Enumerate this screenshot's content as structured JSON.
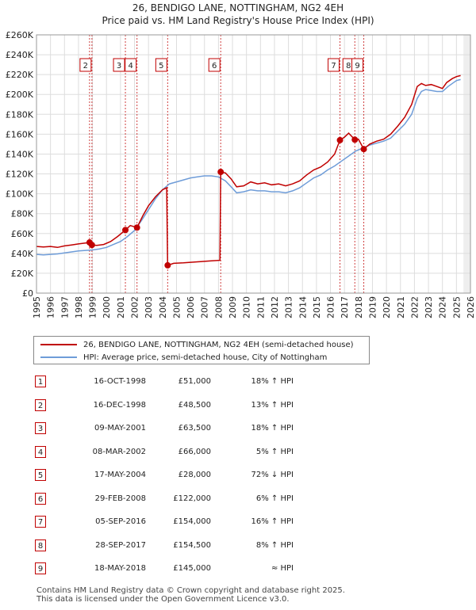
{
  "chart_data": {
    "type": "line",
    "title": "26, BENDIGO LANE, NOTTINGHAM, NG2 4EH",
    "subtitle": "Price paid vs. HM Land Registry's House Price Index (HPI)",
    "xlabel": "",
    "ylabel": "",
    "xlim": [
      1995,
      2026
    ],
    "ylim": [
      0,
      260000
    ],
    "grid": true,
    "x_ticks": [
      "1995",
      "1996",
      "1997",
      "1998",
      "1999",
      "2000",
      "2001",
      "2002",
      "2003",
      "2004",
      "2005",
      "2006",
      "2007",
      "2008",
      "2009",
      "2010",
      "2011",
      "2012",
      "2013",
      "2014",
      "2015",
      "2016",
      "2017",
      "2018",
      "2019",
      "2020",
      "2021",
      "2022",
      "2023",
      "2024",
      "2025",
      "2026"
    ],
    "y_ticks": [
      {
        "value": 0,
        "label": "£0"
      },
      {
        "value": 20000,
        "label": "£20K"
      },
      {
        "value": 40000,
        "label": "£40K"
      },
      {
        "value": 60000,
        "label": "£60K"
      },
      {
        "value": 80000,
        "label": "£80K"
      },
      {
        "value": 100000,
        "label": "£100K"
      },
      {
        "value": 120000,
        "label": "£120K"
      },
      {
        "value": 140000,
        "label": "£140K"
      },
      {
        "value": 160000,
        "label": "£160K"
      },
      {
        "value": 180000,
        "label": "£180K"
      },
      {
        "value": 200000,
        "label": "£200K"
      },
      {
        "value": 220000,
        "label": "£220K"
      },
      {
        "value": 240000,
        "label": "£240K"
      },
      {
        "value": 260000,
        "label": "£260K"
      }
    ],
    "series": [
      {
        "name": "26, BENDIGO LANE, NOTTINGHAM, NG2 4EH (semi-detached house)",
        "color": "#c00000",
        "points": [
          [
            1995.0,
            47000
          ],
          [
            1995.5,
            46500
          ],
          [
            1996.0,
            47000
          ],
          [
            1996.5,
            46000
          ],
          [
            1997.0,
            47500
          ],
          [
            1997.5,
            48500
          ],
          [
            1998.0,
            49500
          ],
          [
            1998.5,
            50500
          ],
          [
            1998.79,
            51000
          ],
          [
            1998.96,
            48500
          ],
          [
            1999.3,
            48000
          ],
          [
            1999.8,
            49000
          ],
          [
            2000.3,
            52000
          ],
          [
            2000.8,
            57000
          ],
          [
            2001.35,
            63500
          ],
          [
            2001.7,
            68000
          ],
          [
            2002.18,
            66000
          ],
          [
            2002.6,
            78000
          ],
          [
            2003.0,
            88000
          ],
          [
            2003.5,
            97000
          ],
          [
            2004.0,
            104000
          ],
          [
            2004.3,
            106000
          ],
          [
            2004.37,
            28000
          ],
          [
            2004.8,
            30000
          ],
          [
            2005.5,
            30500
          ],
          [
            2006.0,
            31000
          ],
          [
            2006.5,
            31500
          ],
          [
            2007.0,
            32000
          ],
          [
            2007.5,
            32500
          ],
          [
            2008.1,
            33000
          ],
          [
            2008.16,
            122000
          ],
          [
            2008.5,
            121000
          ],
          [
            2008.9,
            115000
          ],
          [
            2009.3,
            107000
          ],
          [
            2009.8,
            108000
          ],
          [
            2010.3,
            112000
          ],
          [
            2010.8,
            110000
          ],
          [
            2011.3,
            111000
          ],
          [
            2011.8,
            109000
          ],
          [
            2012.3,
            110000
          ],
          [
            2012.8,
            108000
          ],
          [
            2013.3,
            110000
          ],
          [
            2013.8,
            113000
          ],
          [
            2014.3,
            119000
          ],
          [
            2014.8,
            124000
          ],
          [
            2015.3,
            127000
          ],
          [
            2015.8,
            132000
          ],
          [
            2016.3,
            140000
          ],
          [
            2016.68,
            154000
          ],
          [
            2017.0,
            157000
          ],
          [
            2017.3,
            161000
          ],
          [
            2017.74,
            154500
          ],
          [
            2018.0,
            155000
          ],
          [
            2018.38,
            145000
          ],
          [
            2018.8,
            150000
          ],
          [
            2019.3,
            153000
          ],
          [
            2019.8,
            155000
          ],
          [
            2020.3,
            160000
          ],
          [
            2020.8,
            168000
          ],
          [
            2021.3,
            177000
          ],
          [
            2021.8,
            190000
          ],
          [
            2022.2,
            208000
          ],
          [
            2022.5,
            211000
          ],
          [
            2022.8,
            209000
          ],
          [
            2023.2,
            210000
          ],
          [
            2023.6,
            208000
          ],
          [
            2024.0,
            206000
          ],
          [
            2024.3,
            212000
          ],
          [
            2024.7,
            216000
          ],
          [
            2025.0,
            218000
          ],
          [
            2025.3,
            219000
          ]
        ]
      },
      {
        "name": "HPI: Average price, semi-detached house, City of Nottingham",
        "color": "#6e9cd8",
        "points": [
          [
            1995.0,
            39000
          ],
          [
            1995.5,
            38500
          ],
          [
            1996.0,
            39000
          ],
          [
            1996.5,
            39500
          ],
          [
            1997.0,
            40500
          ],
          [
            1997.5,
            41500
          ],
          [
            1998.0,
            42500
          ],
          [
            1998.5,
            43000
          ],
          [
            1999.0,
            43500
          ],
          [
            1999.5,
            44500
          ],
          [
            2000.0,
            46000
          ],
          [
            2000.5,
            49000
          ],
          [
            2001.0,
            52000
          ],
          [
            2001.5,
            57000
          ],
          [
            2002.0,
            63000
          ],
          [
            2002.5,
            73000
          ],
          [
            2003.0,
            84000
          ],
          [
            2003.5,
            95000
          ],
          [
            2004.0,
            104000
          ],
          [
            2004.5,
            110000
          ],
          [
            2005.0,
            112000
          ],
          [
            2005.5,
            114000
          ],
          [
            2006.0,
            116000
          ],
          [
            2006.5,
            117000
          ],
          [
            2007.0,
            118000
          ],
          [
            2007.5,
            118000
          ],
          [
            2008.0,
            117000
          ],
          [
            2008.5,
            113000
          ],
          [
            2008.9,
            107000
          ],
          [
            2009.3,
            101000
          ],
          [
            2009.8,
            102000
          ],
          [
            2010.3,
            104000
          ],
          [
            2010.8,
            103000
          ],
          [
            2011.3,
            103000
          ],
          [
            2011.8,
            102000
          ],
          [
            2012.3,
            102000
          ],
          [
            2012.8,
            101000
          ],
          [
            2013.3,
            103000
          ],
          [
            2013.8,
            106000
          ],
          [
            2014.3,
            111000
          ],
          [
            2014.8,
            116000
          ],
          [
            2015.3,
            119000
          ],
          [
            2015.8,
            124000
          ],
          [
            2016.3,
            128000
          ],
          [
            2016.8,
            133000
          ],
          [
            2017.3,
            138000
          ],
          [
            2017.8,
            143000
          ],
          [
            2018.3,
            146000
          ],
          [
            2018.8,
            149000
          ],
          [
            2019.3,
            151000
          ],
          [
            2019.8,
            153000
          ],
          [
            2020.3,
            156000
          ],
          [
            2020.8,
            163000
          ],
          [
            2021.3,
            170000
          ],
          [
            2021.8,
            180000
          ],
          [
            2022.2,
            196000
          ],
          [
            2022.5,
            203000
          ],
          [
            2022.8,
            205000
          ],
          [
            2023.2,
            204000
          ],
          [
            2023.6,
            203000
          ],
          [
            2024.0,
            203000
          ],
          [
            2024.4,
            208000
          ],
          [
            2024.8,
            212000
          ],
          [
            2025.0,
            214000
          ],
          [
            2025.3,
            215000
          ]
        ]
      }
    ],
    "sales": [
      {
        "n": "1",
        "x": 1998.79,
        "price": 51000
      },
      {
        "n": "2",
        "x": 1998.96,
        "price": 48500
      },
      {
        "n": "3",
        "x": 2001.35,
        "price": 63500
      },
      {
        "n": "4",
        "x": 2002.18,
        "price": 66000
      },
      {
        "n": "5",
        "x": 2004.37,
        "price": 28000
      },
      {
        "n": "6",
        "x": 2008.16,
        "price": 122000
      },
      {
        "n": "7",
        "x": 2016.68,
        "price": 154000
      },
      {
        "n": "8",
        "x": 2017.74,
        "price": 154500
      },
      {
        "n": "9",
        "x": 2018.38,
        "price": 145000
      }
    ],
    "marker_labels": [
      {
        "n": "2",
        "x": 1998.96
      },
      {
        "n": "3",
        "x": 2001.35
      },
      {
        "n": "4",
        "x": 2002.18
      },
      {
        "n": "5",
        "x": 2004.37
      },
      {
        "n": "6",
        "x": 2008.16
      },
      {
        "n": "7",
        "x": 2016.68
      },
      {
        "n": "8",
        "x": 2017.74
      },
      {
        "n": "9",
        "x": 2018.38
      }
    ],
    "future_shade_from": 2025.5
  },
  "legend": {
    "property": "26, BENDIGO LANE, NOTTINGHAM, NG2 4EH (semi-detached house)",
    "hpi": "HPI: Average price, semi-detached house, City of Nottingham"
  },
  "colors": {
    "property": "#c00000",
    "hpi": "#6e9cd8",
    "grid": "#dddddd",
    "marker": "#c00000"
  },
  "transactions": [
    {
      "n": "1",
      "date": "16-OCT-1998",
      "price": "£51,000",
      "hpi": "18% ↑ HPI"
    },
    {
      "n": "2",
      "date": "16-DEC-1998",
      "price": "£48,500",
      "hpi": "13% ↑ HPI"
    },
    {
      "n": "3",
      "date": "09-MAY-2001",
      "price": "£63,500",
      "hpi": "18% ↑ HPI"
    },
    {
      "n": "4",
      "date": "08-MAR-2002",
      "price": "£66,000",
      "hpi": "5% ↑ HPI"
    },
    {
      "n": "5",
      "date": "17-MAY-2004",
      "price": "£28,000",
      "hpi": "72% ↓ HPI"
    },
    {
      "n": "6",
      "date": "29-FEB-2008",
      "price": "£122,000",
      "hpi": "6% ↑ HPI"
    },
    {
      "n": "7",
      "date": "05-SEP-2016",
      "price": "£154,000",
      "hpi": "16% ↑ HPI"
    },
    {
      "n": "8",
      "date": "28-SEP-2017",
      "price": "£154,500",
      "hpi": "8% ↑ HPI"
    },
    {
      "n": "9",
      "date": "18-MAY-2018",
      "price": "£145,000",
      "hpi": "≈ HPI"
    }
  ],
  "footer": {
    "line1": "Contains HM Land Registry data © Crown copyright and database right 2025.",
    "line2": "This data is licensed under the Open Government Licence v3.0."
  }
}
